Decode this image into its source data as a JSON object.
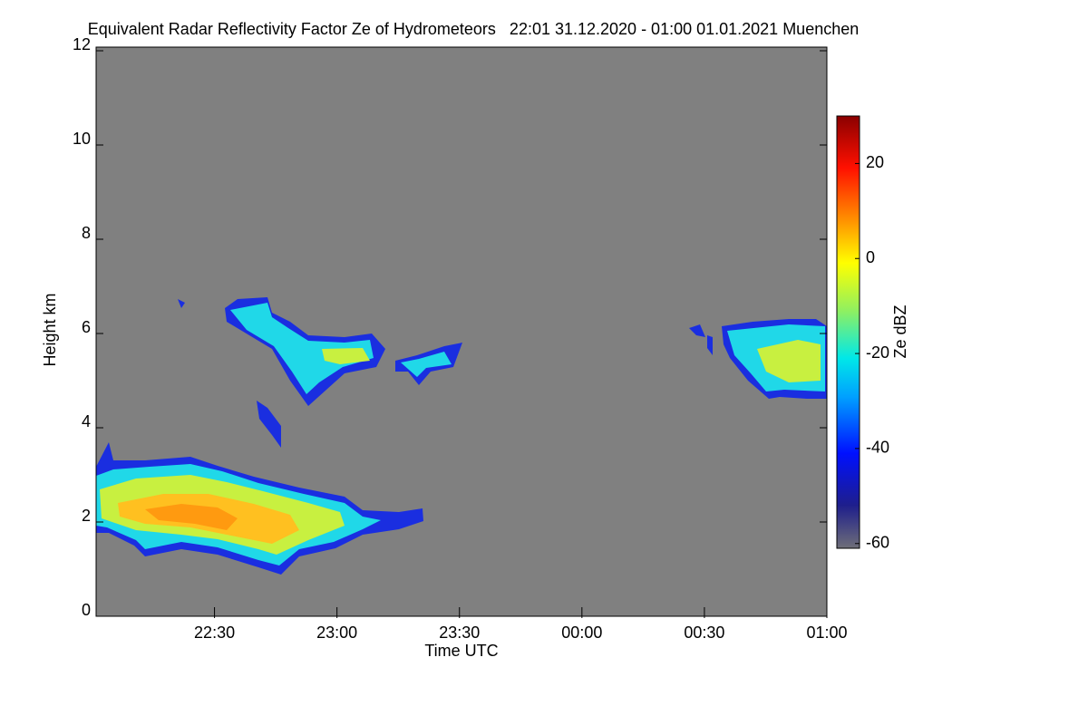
{
  "chart_data": {
    "type": "heatmap",
    "title": "Equivalent Radar Reflectivity Factor Ze of Hydrometeors   22:01 31.12.2020 - 01:00 01.01.2021 Muenchen",
    "x_label": "Time UTC",
    "y_label": "Height km",
    "xlim": [
      1,
      180
    ],
    "xticks": [
      {
        "value": 30,
        "label": "22:30"
      },
      {
        "value": 60,
        "label": "23:00"
      },
      {
        "value": 90,
        "label": "23:30"
      },
      {
        "value": 120,
        "label": "00:00"
      },
      {
        "value": 150,
        "label": "00:30"
      },
      {
        "value": 180,
        "label": "01:00"
      }
    ],
    "ylim": [
      0,
      12
    ],
    "yticks": [
      0,
      2,
      4,
      6,
      8,
      10,
      12
    ],
    "colorbar": {
      "label": "Ze dBZ",
      "lim": [
        -61,
        30
      ],
      "ticks": [
        -60,
        -40,
        -20,
        0,
        20
      ]
    }
  }
}
